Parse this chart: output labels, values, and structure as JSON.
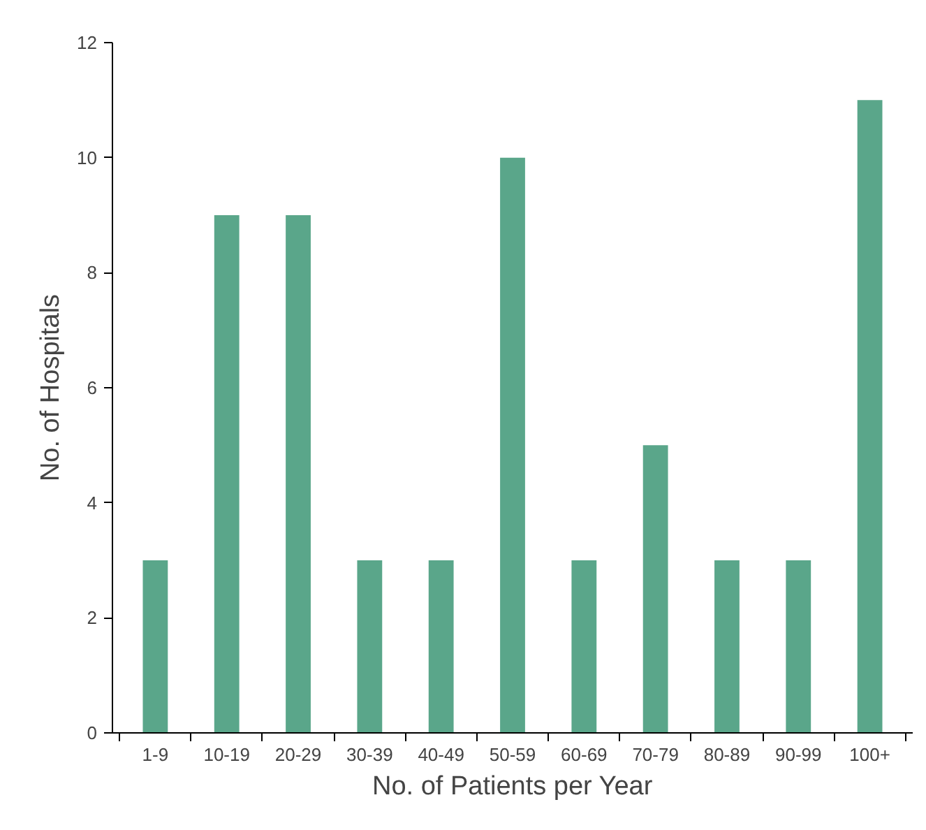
{
  "chart_data": {
    "type": "bar",
    "xlabel": "No. of Patients per Year",
    "ylabel": "No. of Hospitals",
    "categories": [
      "1-9",
      "10-19",
      "20-29",
      "30-39",
      "40-49",
      "50-59",
      "60-69",
      "70-79",
      "80-89",
      "90-99",
      "100+"
    ],
    "values": [
      3,
      9,
      9,
      3,
      3,
      10,
      3,
      5,
      3,
      3,
      11
    ],
    "color": "#5aa68a",
    "ylim": [
      0,
      12
    ],
    "yticks": [
      0,
      2,
      4,
      6,
      8,
      10,
      12
    ],
    "grid": false
  }
}
